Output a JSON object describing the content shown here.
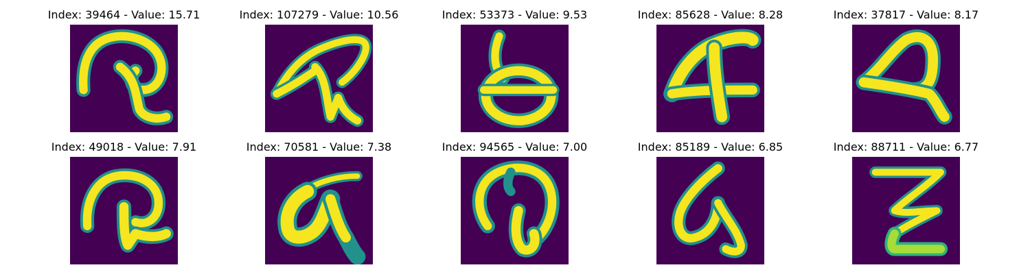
{
  "figure": {
    "panels": [
      {
        "title": "Index: 39464 - Value: 15.71",
        "glyph_icon": "handwritten-glyph-icon"
      },
      {
        "title": "Index: 107279 - Value: 10.56",
        "glyph_icon": "handwritten-glyph-icon"
      },
      {
        "title": "Index: 53373 - Value: 9.53",
        "glyph_icon": "handwritten-glyph-icon"
      },
      {
        "title": "Index: 85628 - Value: 8.28",
        "glyph_icon": "handwritten-glyph-icon"
      },
      {
        "title": "Index: 37817 - Value: 8.17",
        "glyph_icon": "handwritten-glyph-icon"
      },
      {
        "title": "Index: 49018 - Value: 7.91",
        "glyph_icon": "handwritten-glyph-icon"
      },
      {
        "title": "Index: 70581 - Value: 7.38",
        "glyph_icon": "handwritten-glyph-icon"
      },
      {
        "title": "Index: 94565 - Value: 7.00",
        "glyph_icon": "handwritten-glyph-icon"
      },
      {
        "title": "Index: 85189 - Value: 6.85",
        "glyph_icon": "handwritten-glyph-icon"
      },
      {
        "title": "Index: 88711 - Value: 6.77",
        "glyph_icon": "handwritten-glyph-icon"
      }
    ],
    "colors": {
      "background": "#440154",
      "stroke_core": "#f5e61f",
      "stroke_edge": "#2fb37b",
      "stroke_mid": "#21918c"
    }
  }
}
